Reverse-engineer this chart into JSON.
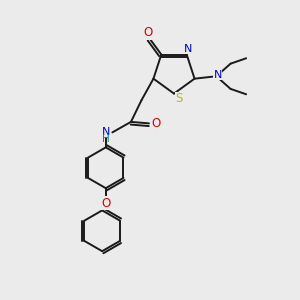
{
  "bg_color": "#ebebeb",
  "bond_color": "#1a1a1a",
  "atom_colors": {
    "O": "#dd0000",
    "N": "#0000cc",
    "S": "#bbbb00",
    "H": "#008888",
    "C": "#1a1a1a"
  }
}
